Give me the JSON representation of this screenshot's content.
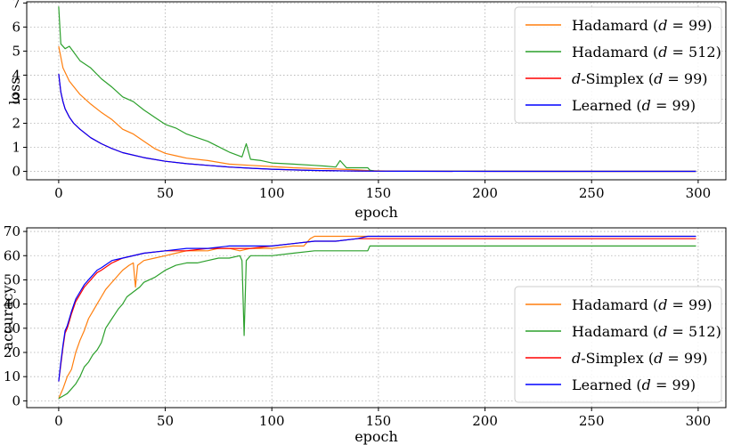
{
  "chart_data": [
    {
      "type": "line",
      "xlabel": "epoch",
      "ylabel": "loss",
      "xlim": [
        -15,
        313
      ],
      "ylim": [
        -0.35,
        7.05
      ],
      "xticks": [
        0,
        50,
        100,
        150,
        200,
        250,
        300
      ],
      "yticks": [
        0,
        1,
        2,
        3,
        4,
        5,
        6,
        7
      ],
      "grid": true,
      "legend_position": "top-right",
      "series": [
        {
          "name": "Hadamard (d = 99)",
          "color": "#ff7f0e",
          "x": [
            0,
            2,
            5,
            10,
            15,
            20,
            25,
            30,
            35,
            40,
            45,
            50,
            55,
            60,
            70,
            80,
            90,
            100,
            110,
            120,
            130,
            140,
            146,
            150,
            160,
            200,
            250,
            299
          ],
          "y": [
            5.2,
            4.3,
            3.75,
            3.2,
            2.8,
            2.45,
            2.15,
            1.75,
            1.55,
            1.25,
            0.95,
            0.75,
            0.65,
            0.55,
            0.45,
            0.3,
            0.25,
            0.2,
            0.15,
            0.12,
            0.1,
            0.06,
            0.03,
            0.02,
            0.01,
            0.005,
            0.003,
            0.002
          ]
        },
        {
          "name": "Hadamard (d = 512)",
          "color": "#2ca02c",
          "x": [
            0,
            1,
            3,
            5,
            10,
            15,
            20,
            25,
            30,
            35,
            40,
            45,
            50,
            55,
            60,
            70,
            80,
            86,
            88,
            90,
            95,
            100,
            110,
            120,
            125,
            130,
            132,
            135,
            140,
            145,
            146,
            148,
            150,
            160,
            200,
            250,
            299
          ],
          "y": [
            6.85,
            5.3,
            5.1,
            5.2,
            4.6,
            4.3,
            3.85,
            3.5,
            3.1,
            2.9,
            2.55,
            2.25,
            1.95,
            1.8,
            1.55,
            1.25,
            0.8,
            0.6,
            1.15,
            0.5,
            0.45,
            0.35,
            0.3,
            0.25,
            0.22,
            0.18,
            0.45,
            0.15,
            0.15,
            0.15,
            0.05,
            0.02,
            0.01,
            0.008,
            0.005,
            0.003,
            0.002
          ]
        },
        {
          "name": "d-Simplex (d = 99)",
          "color": "#ff0000",
          "x": [
            0,
            1,
            2,
            3,
            5,
            7,
            10,
            15,
            20,
            25,
            30,
            40,
            50,
            60,
            70,
            80,
            90,
            100,
            110,
            120,
            130,
            140,
            150,
            160,
            200,
            250,
            299
          ],
          "y": [
            4.05,
            3.3,
            2.9,
            2.6,
            2.25,
            2.0,
            1.75,
            1.4,
            1.15,
            0.95,
            0.78,
            0.57,
            0.42,
            0.32,
            0.25,
            0.18,
            0.13,
            0.09,
            0.06,
            0.04,
            0.025,
            0.015,
            0.008,
            0.005,
            0.003,
            0.002,
            0.001
          ]
        },
        {
          "name": "Learned (d = 99)",
          "color": "#0000ff",
          "x": [
            0,
            1,
            2,
            3,
            5,
            7,
            10,
            15,
            20,
            25,
            30,
            40,
            50,
            60,
            70,
            80,
            90,
            100,
            110,
            120,
            130,
            140,
            150,
            160,
            200,
            250,
            299
          ],
          "y": [
            4.05,
            3.3,
            2.9,
            2.6,
            2.25,
            2.0,
            1.75,
            1.4,
            1.15,
            0.95,
            0.78,
            0.57,
            0.42,
            0.32,
            0.25,
            0.18,
            0.13,
            0.09,
            0.06,
            0.04,
            0.025,
            0.015,
            0.008,
            0.005,
            0.003,
            0.002,
            0.001
          ]
        }
      ]
    },
    {
      "type": "line",
      "xlabel": "epoch",
      "ylabel": "accuracy",
      "xlim": [
        -15,
        313
      ],
      "ylim": [
        -2.8,
        71.5
      ],
      "xticks": [
        0,
        50,
        100,
        150,
        200,
        250,
        300
      ],
      "yticks": [
        0,
        10,
        20,
        30,
        40,
        50,
        60,
        70
      ],
      "grid": true,
      "legend_position": "bottom-right",
      "series": [
        {
          "name": "Hadamard (d = 99)",
          "color": "#ff7f0e",
          "x": [
            0,
            2,
            4,
            6,
            8,
            10,
            12,
            14,
            16,
            18,
            20,
            22,
            24,
            26,
            28,
            30,
            33,
            35,
            36,
            37,
            40,
            45,
            50,
            55,
            60,
            65,
            70,
            75,
            80,
            85,
            90,
            100,
            110,
            115,
            118,
            120,
            130,
            140,
            150,
            160,
            200,
            250,
            299
          ],
          "y": [
            1,
            5,
            10,
            13,
            20,
            25,
            29,
            34,
            37,
            40,
            43,
            46,
            48,
            50,
            52,
            54,
            56,
            57,
            47,
            56,
            58,
            59,
            60,
            61,
            62,
            62,
            62,
            63,
            63,
            62,
            63,
            63,
            64,
            64,
            67,
            68,
            68,
            68,
            68,
            68,
            68,
            68,
            68
          ]
        },
        {
          "name": "Hadamard (d = 512)",
          "color": "#2ca02c",
          "x": [
            0,
            2,
            4,
            6,
            8,
            10,
            12,
            14,
            16,
            18,
            20,
            22,
            25,
            28,
            30,
            32,
            35,
            38,
            40,
            45,
            50,
            55,
            60,
            65,
            70,
            75,
            80,
            85,
            86,
            87,
            88,
            90,
            95,
            100,
            110,
            120,
            130,
            140,
            145,
            146,
            150,
            160,
            200,
            250,
            299
          ],
          "y": [
            1,
            2,
            3,
            5,
            7,
            10,
            14,
            16,
            19,
            21,
            24,
            30,
            34,
            38,
            40,
            43,
            45,
            47,
            49,
            51,
            54,
            56,
            57,
            57,
            58,
            59,
            59,
            60,
            58,
            27,
            58,
            60,
            60,
            60,
            61,
            62,
            62,
            62,
            62,
            64,
            64,
            64,
            64,
            64,
            64
          ]
        },
        {
          "name": "d-Simplex (d = 99)",
          "color": "#ff0000",
          "x": [
            0,
            1,
            2,
            3,
            4,
            5,
            6,
            8,
            10,
            12,
            15,
            18,
            20,
            25,
            30,
            40,
            50,
            60,
            70,
            80,
            90,
            100,
            110,
            120,
            130,
            140,
            145,
            150,
            160,
            200,
            250,
            299
          ],
          "y": [
            8,
            15,
            22,
            28,
            30,
            33,
            36,
            41,
            44,
            47,
            50,
            53,
            54,
            57,
            59,
            61,
            62,
            62,
            63,
            63,
            63,
            64,
            65,
            66,
            66,
            67,
            67,
            67,
            67,
            67,
            67,
            67
          ]
        },
        {
          "name": "Learned (d = 99)",
          "color": "#0000ff",
          "x": [
            0,
            1,
            2,
            3,
            4,
            5,
            6,
            8,
            10,
            12,
            15,
            18,
            20,
            25,
            30,
            40,
            50,
            60,
            70,
            80,
            90,
            100,
            110,
            120,
            130,
            140,
            145,
            150,
            160,
            200,
            250,
            299
          ],
          "y": [
            8,
            16,
            23,
            29,
            31,
            34,
            37,
            42,
            45,
            48,
            51,
            54,
            55,
            58,
            59,
            61,
            62,
            63,
            63,
            64,
            64,
            64,
            65,
            66,
            66,
            67,
            68,
            68,
            68,
            68,
            68,
            68
          ]
        }
      ]
    }
  ]
}
